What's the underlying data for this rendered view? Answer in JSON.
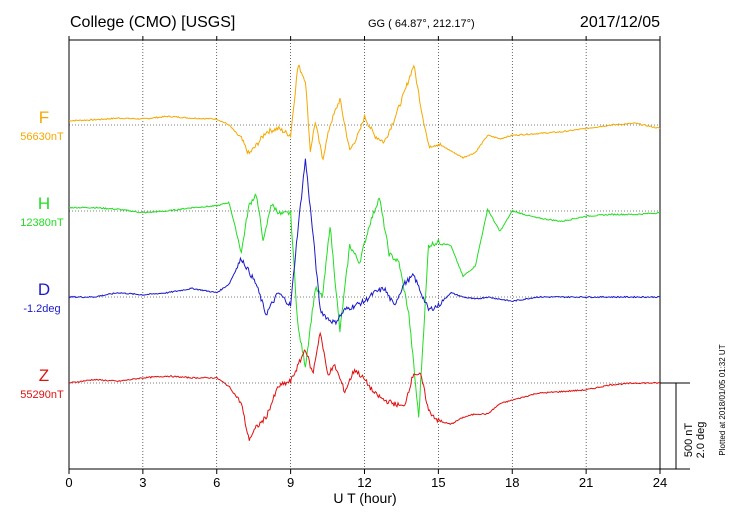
{
  "header": {
    "station": "College (CMO)  [USGS]",
    "coords": "GG ( 64.87°, 212.17°)",
    "date": "2017/12/05"
  },
  "footer": {
    "plotted": "Plotted at 2018/01/05 01:32 UT"
  },
  "colors": {
    "F": "#f5a800",
    "H": "#22dd22",
    "D": "#1a1acc",
    "Z": "#e01010",
    "grid": "#000000",
    "axis": "#000000"
  },
  "chart_data": {
    "type": "line",
    "xlabel": "U T (hour)",
    "xlim": [
      0,
      24
    ],
    "xticks": [
      0,
      3,
      6,
      9,
      12,
      15,
      18,
      21,
      24
    ],
    "scale_bar": {
      "label_nT": "500 nT",
      "label_deg": "2.0 deg"
    },
    "series": [
      {
        "name": "F",
        "baseline_label": "56630nT",
        "unit": "nT",
        "x": [
          0,
          1,
          2,
          3,
          4,
          5,
          6,
          6.5,
          7,
          7.3,
          7.6,
          8,
          8.5,
          9,
          9.3,
          9.6,
          9.8,
          10,
          10.3,
          10.6,
          11,
          11.4,
          11.8,
          12,
          12.4,
          12.8,
          13.2,
          13.6,
          14,
          14.3,
          14.6,
          15,
          15.5,
          16,
          16.5,
          17,
          17.5,
          18,
          19,
          20,
          21,
          22,
          23,
          24
        ],
        "values": [
          25,
          30,
          40,
          35,
          50,
          40,
          35,
          0,
          -80,
          -170,
          -120,
          -40,
          -20,
          -60,
          350,
          260,
          -150,
          20,
          -200,
          0,
          150,
          -150,
          -40,
          50,
          -60,
          -100,
          30,
          180,
          350,
          100,
          -120,
          -110,
          -150,
          -190,
          -160,
          -60,
          -80,
          -60,
          -50,
          -40,
          -20,
          0,
          10,
          -20
        ]
      },
      {
        "name": "H",
        "baseline_label": "12380nT",
        "unit": "nT",
        "x": [
          0,
          1,
          2,
          3,
          4,
          5,
          6,
          6.5,
          7,
          7.3,
          7.6,
          7.9,
          8.2,
          8.6,
          9,
          9.3,
          9.6,
          10,
          10.3,
          10.6,
          11,
          11.4,
          11.8,
          12.2,
          12.6,
          13,
          13.4,
          13.8,
          14.2,
          14.6,
          15,
          15.5,
          16,
          16.5,
          17,
          17.5,
          18,
          19,
          20,
          21,
          22,
          23,
          24
        ],
        "values": [
          20,
          20,
          10,
          -10,
          0,
          20,
          30,
          50,
          -240,
          30,
          100,
          -180,
          40,
          -20,
          -10,
          -680,
          -900,
          -450,
          -500,
          -80,
          -700,
          -200,
          -300,
          -80,
          80,
          -250,
          -300,
          -600,
          -1200,
          -200,
          -180,
          -200,
          -380,
          -320,
          10,
          -120,
          0,
          -40,
          -60,
          -30,
          -20,
          -20,
          -10
        ]
      },
      {
        "name": "D",
        "baseline_label": "-1.2deg",
        "unit": "deg",
        "x": [
          0,
          1,
          2,
          3,
          4,
          5,
          6,
          6.5,
          7,
          7.3,
          7.6,
          8,
          8.5,
          9,
          9.3,
          9.6,
          9.9,
          10.2,
          10.5,
          10.8,
          11.2,
          11.6,
          12,
          12.4,
          12.8,
          13.2,
          13.6,
          14,
          14.3,
          14.6,
          15,
          15.5,
          16,
          16.5,
          17,
          17.5,
          18,
          19,
          20,
          21,
          22,
          23,
          24
        ],
        "values": [
          0,
          0,
          0.1,
          0.05,
          0.1,
          0.2,
          0.1,
          0.3,
          0.9,
          0.6,
          0.3,
          -0.4,
          0.1,
          -0.2,
          1.6,
          3.2,
          1.5,
          -0.3,
          -0.5,
          -0.6,
          -0.3,
          -0.2,
          -0.1,
          0.1,
          0.2,
          -0.2,
          0.3,
          0.5,
          0.1,
          -0.3,
          -0.2,
          0.1,
          0.0,
          -0.05,
          0.0,
          -0.05,
          -0.1,
          0.0,
          0.0,
          0.0,
          0.0,
          0.0,
          0.0
        ]
      },
      {
        "name": "Z",
        "baseline_label": "55290nT",
        "unit": "nT",
        "x": [
          0,
          1,
          2,
          3,
          4,
          5,
          6,
          6.5,
          7,
          7.3,
          7.6,
          8,
          8.5,
          9,
          9.3,
          9.6,
          9.9,
          10.2,
          10.5,
          10.8,
          11.2,
          11.6,
          12,
          12.4,
          12.8,
          13.2,
          13.6,
          14,
          14.3,
          14.6,
          15,
          15.5,
          16,
          16.5,
          17,
          17.5,
          18,
          19,
          20,
          21,
          22,
          23,
          24
        ],
        "values": [
          0,
          20,
          10,
          30,
          40,
          30,
          30,
          -20,
          -120,
          -330,
          -260,
          -200,
          -20,
          10,
          100,
          200,
          50,
          300,
          50,
          100,
          -50,
          80,
          20,
          -60,
          -100,
          -120,
          -140,
          60,
          40,
          -160,
          -220,
          -240,
          -200,
          -180,
          -180,
          -120,
          -100,
          -60,
          -50,
          -40,
          -10,
          0,
          0
        ]
      }
    ]
  }
}
